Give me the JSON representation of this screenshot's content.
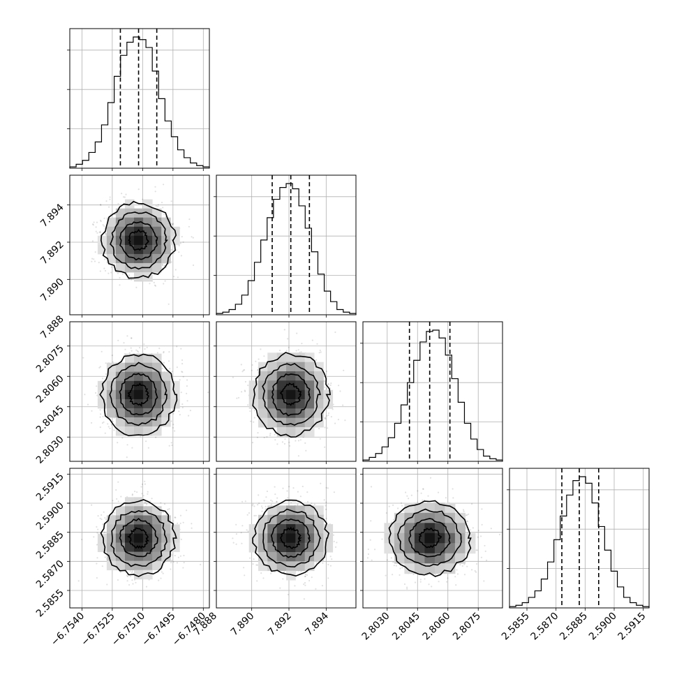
{
  "chart_data": {
    "type": "corner",
    "grid": true,
    "n_params": 4,
    "params": [
      {
        "median": -6.7512,
        "q16": -6.7521,
        "q84": -6.7503,
        "range": [
          -6.7546,
          -6.7477
        ],
        "ticks": [
          "−6.7540",
          "−6.7525",
          "−6.7510",
          "−6.7495",
          "−6.7480"
        ],
        "tick_values": [
          -6.754,
          -6.7525,
          -6.751,
          -6.7495,
          -6.748
        ],
        "hist": [
          0.01,
          0.03,
          0.06,
          0.12,
          0.2,
          0.33,
          0.5,
          0.7,
          0.86,
          0.96,
          1.0,
          0.98,
          0.92,
          0.74,
          0.53,
          0.36,
          0.24,
          0.14,
          0.08,
          0.04,
          0.02,
          0.01
        ]
      },
      {
        "median": 7.8921,
        "q16": 7.8911,
        "q84": 7.8931,
        "range": [
          7.8881,
          7.8956
        ],
        "ticks": [
          "7.888",
          "7.890",
          "7.892",
          "7.894"
        ],
        "tick_values": [
          7.888,
          7.89,
          7.892,
          7.894
        ],
        "hist": [
          0.01,
          0.02,
          0.04,
          0.08,
          0.15,
          0.26,
          0.4,
          0.57,
          0.74,
          0.88,
          0.97,
          1.0,
          0.96,
          0.83,
          0.66,
          0.48,
          0.31,
          0.18,
          0.1,
          0.04,
          0.02,
          0.01
        ]
      },
      {
        "median": 2.8051,
        "q16": 2.8041,
        "q84": 2.8061,
        "range": [
          2.8018,
          2.8087
        ],
        "ticks": [
          "2.8030",
          "2.8045",
          "2.8060",
          "2.8075"
        ],
        "tick_values": [
          2.803,
          2.8045,
          2.806,
          2.8075
        ],
        "hist": [
          0.01,
          0.03,
          0.06,
          0.11,
          0.18,
          0.29,
          0.43,
          0.6,
          0.77,
          0.91,
          0.99,
          1.0,
          0.94,
          0.81,
          0.63,
          0.45,
          0.29,
          0.17,
          0.09,
          0.04,
          0.02,
          0.01
        ]
      },
      {
        "median": 2.5882,
        "q16": 2.5873,
        "q84": 2.5892,
        "range": [
          2.5846,
          2.5918
        ],
        "ticks": [
          "2.5855",
          "2.5870",
          "2.5885",
          "2.5900",
          "2.5915"
        ],
        "tick_values": [
          2.5855,
          2.587,
          2.5885,
          2.59,
          2.5915
        ],
        "hist": [
          0.01,
          0.02,
          0.04,
          0.08,
          0.13,
          0.22,
          0.35,
          0.52,
          0.7,
          0.86,
          0.97,
          1.0,
          0.95,
          0.8,
          0.62,
          0.44,
          0.28,
          0.16,
          0.08,
          0.04,
          0.02,
          0.01
        ]
      }
    ],
    "contour_levels": [
      0.5,
      1.0,
      1.5,
      2.0
    ],
    "quantiles": [
      0.16,
      0.5,
      0.84
    ],
    "colors": {
      "points": "#000000",
      "lines": "#000000",
      "grid": "#b0b0b0"
    }
  }
}
